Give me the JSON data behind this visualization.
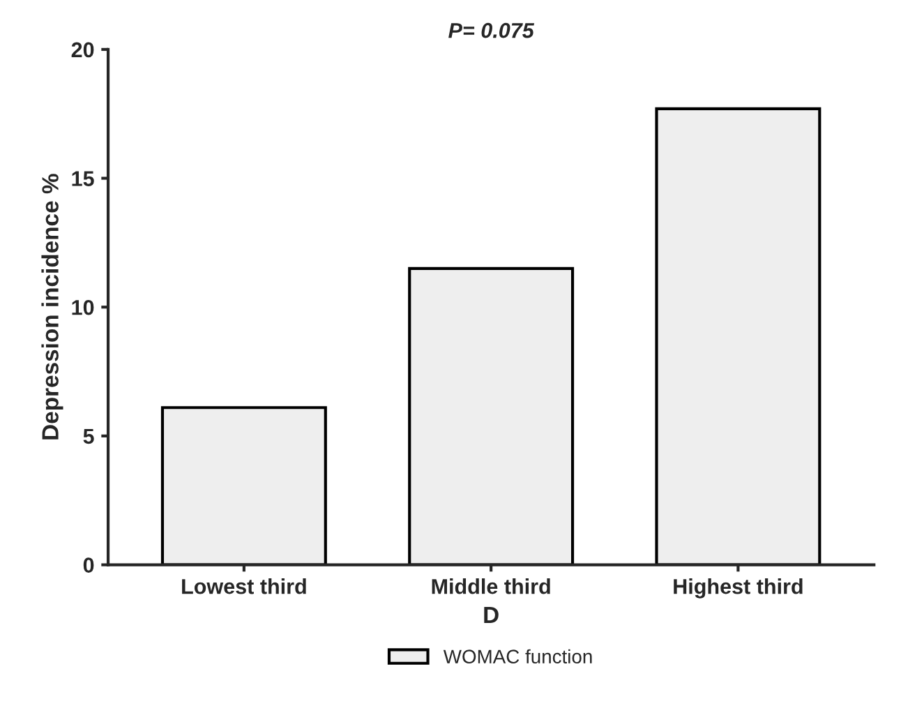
{
  "chart_data": {
    "type": "bar",
    "title": "P= 0.075",
    "xlabel": "D",
    "ylabel": "Depression incidence %",
    "categories": [
      "Lowest third",
      "Middle third",
      "Highest third"
    ],
    "series": [
      {
        "name": "WOMAC function",
        "color": "#eeeeee",
        "values": [
          6.1,
          11.5,
          17.7
        ]
      }
    ],
    "ylim": [
      0,
      20
    ],
    "yticks": [
      0,
      5,
      10,
      15,
      20
    ],
    "grid": false,
    "legend": "bottom"
  }
}
